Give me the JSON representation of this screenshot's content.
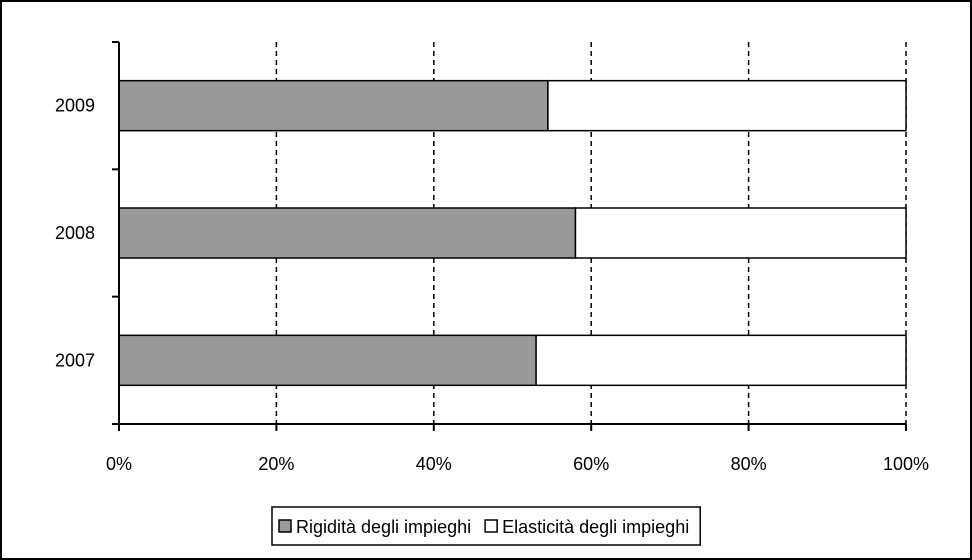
{
  "chart_data": {
    "type": "bar",
    "orientation": "horizontal",
    "stacked": "percent",
    "categories": [
      "2007",
      "2008",
      "2009"
    ],
    "series": [
      {
        "name": "Rigidità degli impieghi",
        "values": [
          53,
          58,
          54.5
        ],
        "color": "#999999"
      },
      {
        "name": "Elasticità degli impieghi",
        "values": [
          47,
          42,
          45.5
        ],
        "color": "#ffffff"
      }
    ],
    "x_ticks": [
      "0%",
      "20%",
      "40%",
      "60%",
      "80%",
      "100%"
    ],
    "xlim": [
      0,
      100
    ],
    "grid": "vertical dashed",
    "legend": "bottom",
    "title": "",
    "xlabel": "",
    "ylabel": ""
  }
}
